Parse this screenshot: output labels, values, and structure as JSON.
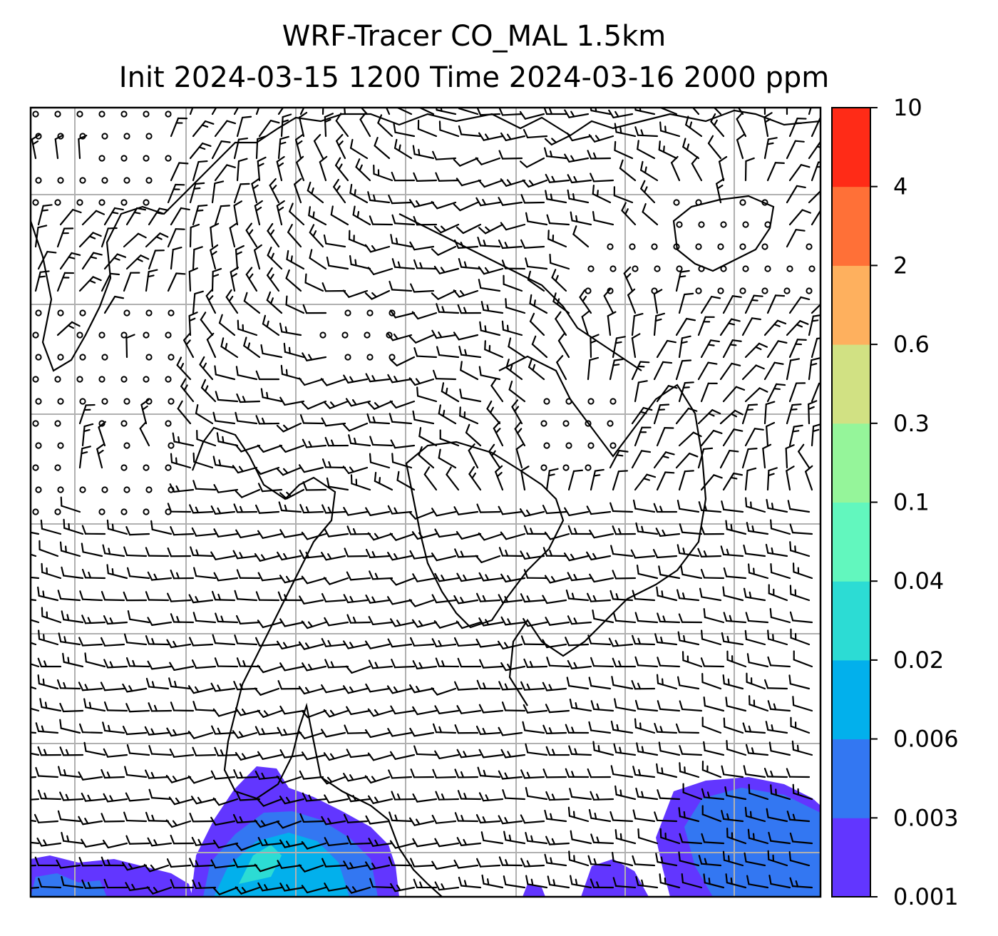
{
  "chart_data": {
    "type": "heatmap",
    "title": "WRF-Tracer CO_MAL 1.5km",
    "subtitle": "Init 2024-03-15 1200 Time 2024-03-16 2000 ppm",
    "grid": true,
    "overlays": [
      "wind barbs",
      "coastlines"
    ],
    "colorbar": {
      "position": "right",
      "levels": [
        "0.001",
        "0.003",
        "0.006",
        "0.02",
        "0.04",
        "0.1",
        "0.3",
        "0.6",
        "2",
        "4",
        "10"
      ],
      "colors": [
        "#6236ff",
        "#3377f2",
        "#02b0ec",
        "#2cdcd4",
        "#62f7be",
        "#95f59a",
        "#d1e183",
        "#feb05e",
        "#ff7037",
        "#ff2b17"
      ]
    },
    "plumes": [
      {
        "location": "bottom-center-left",
        "max_level": "0.04"
      },
      {
        "location": "bottom-right",
        "max_level": "0.006"
      },
      {
        "location": "bottom-left",
        "max_level": "0.003"
      }
    ]
  }
}
